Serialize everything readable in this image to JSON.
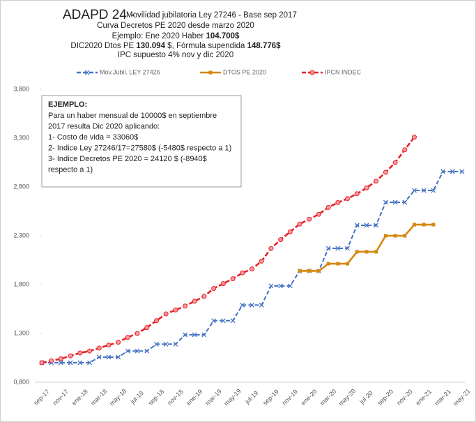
{
  "chart_data": {
    "type": "line",
    "title": "ADAPD 24 -",
    "subtitle_lines": [
      [
        {
          "text": "Movilidad jubilatoria Ley 27246 - Base sep 2017"
        }
      ],
      [
        {
          "text": "Curva Decretos PE 2020 desde marzo 2020"
        }
      ],
      [
        {
          "text": "Ejemplo: Ene 2020 Haber "
        },
        {
          "text": "104.700$",
          "bold": true
        }
      ],
      [
        {
          "text": "DIC2020 Dtos PE "
        },
        {
          "text": "130.094",
          "bold": true
        },
        {
          "text": " $, Fórmula supendida "
        },
        {
          "text": "148.776$",
          "bold": true
        }
      ],
      [
        {
          "text": "IPC supuesto 4% nov y dic 2020"
        }
      ]
    ],
    "annotation": {
      "title": "EJEMPLO:",
      "lines": [
        "Para un haber mensual de 10000$ en septiembre",
        "2017 resulta Dic 2020 aplicando:",
        "1- Costo de vida = 33060$",
        "2- Indice Ley 27246/17=27580$ (-5480$ respecto a 1)",
        "3- Indice Decretos PE 2020 = 24120 $ (-8940$",
        "respecto a 1)"
      ]
    },
    "categories": [
      "sep-17",
      null,
      "nov-17",
      null,
      "ene-18",
      null,
      "mar-18",
      null,
      "may-18",
      null,
      "jul-18",
      null,
      "sep-18",
      null,
      "nov-18",
      null,
      "ene-19",
      null,
      "mar-19",
      null,
      "may-19",
      null,
      "jul-19",
      null,
      "sep-19",
      null,
      "nov-19",
      null,
      "ene-20",
      null,
      "mar-20",
      null,
      "may-20",
      null,
      "jul-20",
      null,
      "sep-20",
      null,
      "nov-20",
      null,
      "ene-21",
      null,
      "mar-21",
      null,
      "may-21"
    ],
    "series": [
      {
        "name": "Mov.Jubil. LEY 27426",
        "color": "#4472c4",
        "marker": "x",
        "values": [
          1.0,
          1.0,
          1.0,
          1.0,
          1.0,
          1.0,
          1.057,
          1.057,
          1.057,
          1.12,
          1.12,
          1.12,
          1.19,
          1.19,
          1.19,
          1.286,
          1.286,
          1.286,
          1.43,
          1.43,
          1.43,
          1.59,
          1.59,
          1.59,
          1.786,
          1.786,
          1.786,
          1.94,
          1.94,
          1.94,
          2.171,
          2.171,
          2.171,
          2.407,
          2.407,
          2.407,
          2.643,
          2.643,
          2.643,
          2.764,
          2.764,
          2.764,
          2.957,
          2.957,
          2.957
        ]
      },
      {
        "name": "DTOS PE 2020",
        "color": "#d4880f",
        "marker": "square",
        "values": [
          null,
          null,
          null,
          null,
          null,
          null,
          null,
          null,
          null,
          null,
          null,
          null,
          null,
          null,
          null,
          null,
          null,
          null,
          null,
          null,
          null,
          null,
          null,
          null,
          null,
          null,
          null,
          1.94,
          1.94,
          1.94,
          2.014,
          2.014,
          2.014,
          2.136,
          2.136,
          2.136,
          2.3,
          2.3,
          2.3,
          2.414,
          2.414,
          2.414,
          null,
          null,
          null
        ]
      },
      {
        "name": "IPCN INDEC",
        "color": "#e8202a",
        "marker": "circle",
        "values": [
          1.0,
          1.02,
          1.04,
          1.07,
          1.1,
          1.12,
          1.15,
          1.18,
          1.21,
          1.26,
          1.3,
          1.36,
          1.43,
          1.5,
          1.54,
          1.58,
          1.63,
          1.68,
          1.76,
          1.81,
          1.86,
          1.92,
          1.96,
          2.04,
          2.17,
          2.26,
          2.34,
          2.42,
          2.47,
          2.52,
          2.59,
          2.64,
          2.68,
          2.73,
          2.79,
          2.86,
          2.95,
          3.05,
          3.18,
          3.31,
          null,
          null,
          null,
          null,
          null
        ]
      }
    ],
    "ylim": [
      0.8,
      3.8
    ],
    "yticks": [
      {
        "value": 0.8,
        "label": "0,800"
      },
      {
        "value": 1.3,
        "label": "1,300"
      },
      {
        "value": 1.8,
        "label": "1,800"
      },
      {
        "value": 2.3,
        "label": "2,300"
      },
      {
        "value": 2.8,
        "label": "2,800"
      },
      {
        "value": 3.3,
        "label": "3,300"
      },
      {
        "value": 3.8,
        "label": "3,800"
      }
    ],
    "grid": false,
    "legend": "top"
  }
}
